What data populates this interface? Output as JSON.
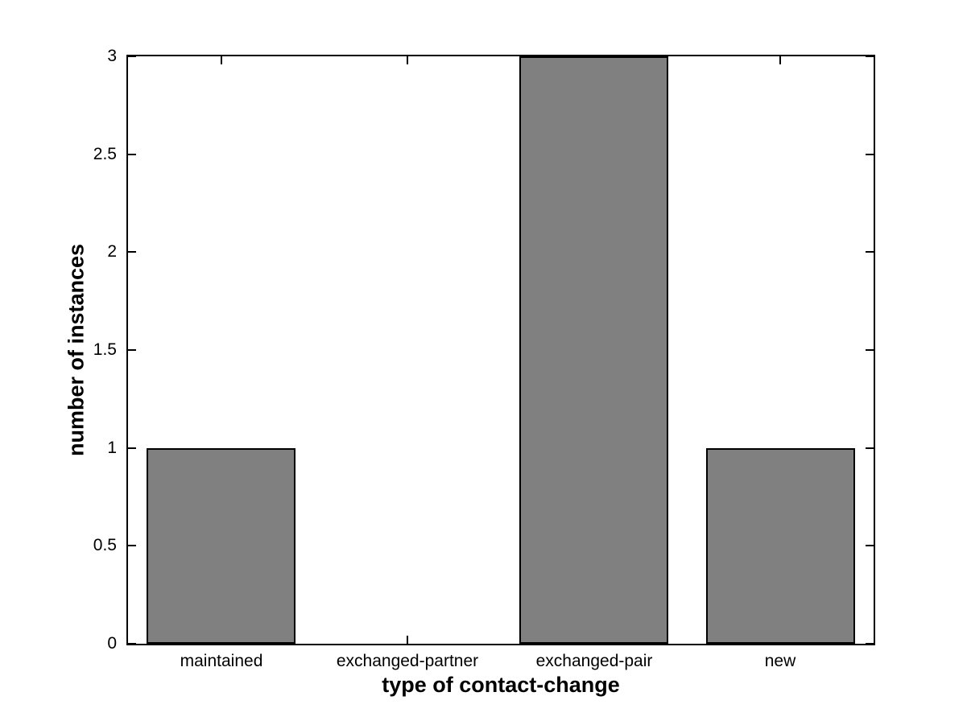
{
  "chart_data": {
    "type": "bar",
    "categories": [
      "maintained",
      "exchanged-partner",
      "exchanged-pair",
      "new"
    ],
    "values": [
      1,
      0,
      3,
      1
    ],
    "title": "",
    "xlabel": "type of contact-change",
    "ylabel": "number of instances",
    "ylim": [
      0,
      3
    ],
    "yticks": [
      0,
      0.5,
      1,
      1.5,
      2,
      2.5,
      3
    ],
    "ytick_labels": [
      "0",
      "0.5",
      "1",
      "1.5",
      "2",
      "2.5",
      "3"
    ],
    "bar_width_fraction": 0.8,
    "grid": false,
    "colors": {
      "bar_fill": "#808080",
      "bar_edge": "#000000",
      "axis": "#000000",
      "background": "#ffffff",
      "text": "#000000"
    }
  }
}
